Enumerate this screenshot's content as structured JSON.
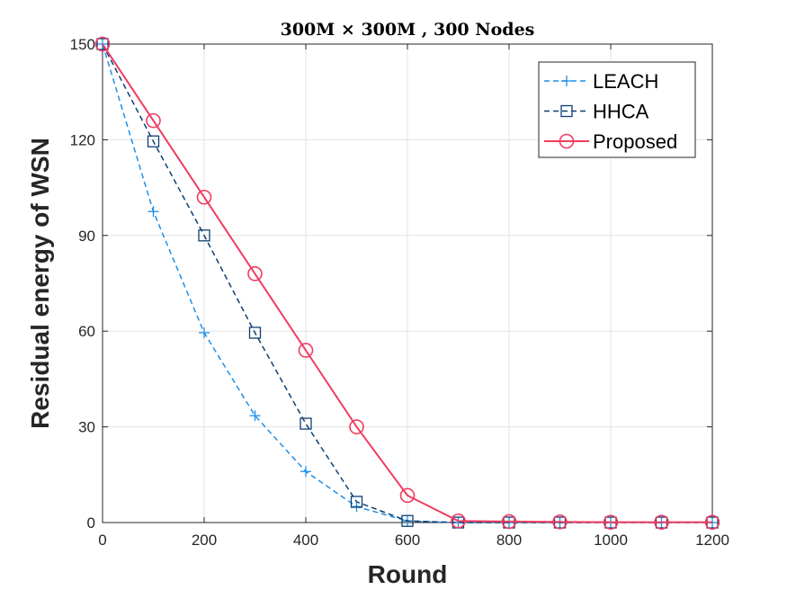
{
  "chart_data": {
    "type": "line",
    "title": "300M × 300M , 300 Nodes",
    "xlabel": "Round",
    "ylabel": "Residual energy of WSN",
    "xlim": [
      0,
      1200
    ],
    "ylim": [
      0,
      150
    ],
    "xticks": [
      0,
      200,
      400,
      600,
      800,
      1000,
      1200
    ],
    "yticks": [
      0,
      30,
      60,
      90,
      120,
      150
    ],
    "grid": true,
    "legend_position": "top-right",
    "x": [
      0,
      100,
      200,
      300,
      400,
      500,
      600,
      700,
      800,
      900,
      1000,
      1100,
      1200
    ],
    "series": [
      {
        "name": "LEACH",
        "color": "#1f8fe6",
        "line_style": "dashed",
        "marker": "plus",
        "values": [
          150,
          97.5,
          59.5,
          33.5,
          16,
          5,
          0.5,
          0,
          0,
          0,
          0,
          0,
          0
        ]
      },
      {
        "name": "HHCA",
        "color": "#0d3f73",
        "line_style": "dashed",
        "marker": "square",
        "values": [
          150,
          119.5,
          90,
          59.5,
          31,
          6.5,
          0.5,
          0,
          0,
          0,
          0,
          0,
          0
        ]
      },
      {
        "name": "Proposed",
        "color": "#f03c60",
        "line_style": "solid",
        "marker": "circle",
        "values": [
          150,
          126,
          102,
          78,
          54,
          30,
          8.5,
          0.5,
          0.3,
          0.2,
          0.1,
          0.1,
          0.1
        ]
      }
    ]
  }
}
